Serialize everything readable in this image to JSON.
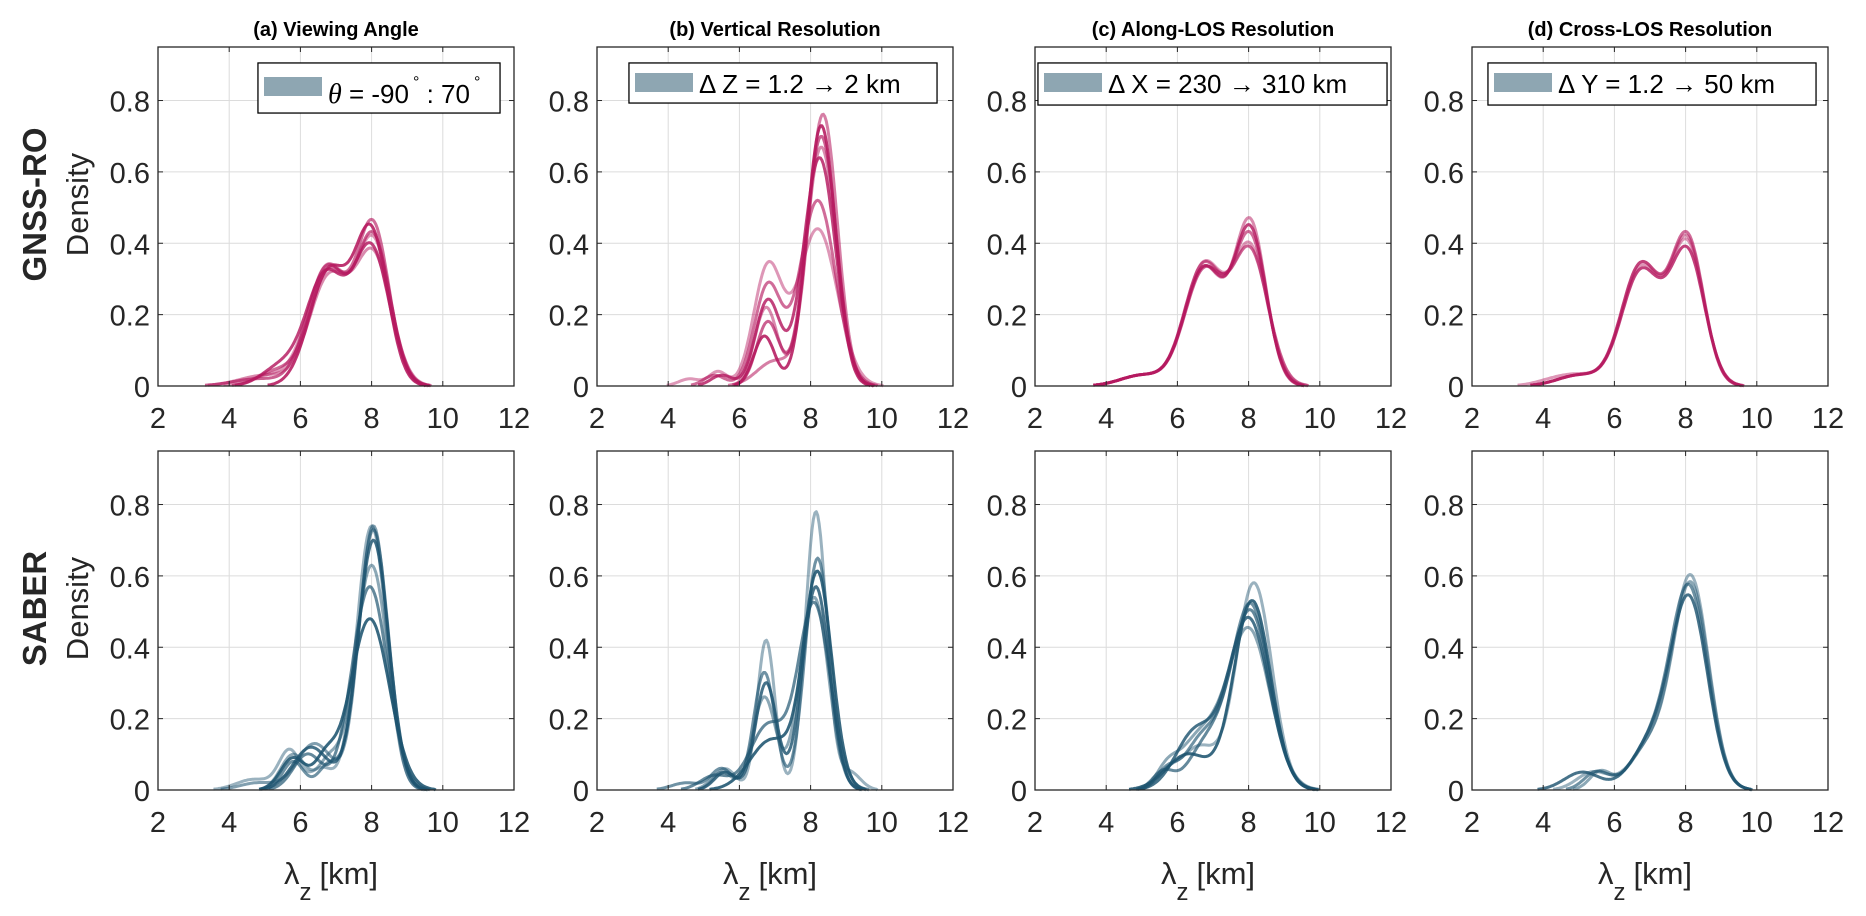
{
  "figure": {
    "column_titles": [
      "(a) Viewing Angle",
      "(b) Vertical Resolution",
      "(c) Along-LOS Resolution",
      "(d) Cross-LOS Resolution"
    ],
    "row_labels": [
      "GNSS-RO",
      "SABER"
    ],
    "ylabel": "Density",
    "xlabel_main": "λ",
    "xlabel_sub": "z",
    "xlabel_unit": "[km]",
    "legends": [
      {
        "prefix": "θ",
        "text": " = -90",
        "sup1": "°",
        "mid": " : 70",
        "sup2": "°"
      },
      {
        "text": "Δ Z = 1.2 → 2 km"
      },
      {
        "text": "Δ X = 230 → 310 km"
      },
      {
        "text": "Δ Y = 1.2 → 50 km"
      }
    ],
    "colors": {
      "gnss_line": "#B5195F",
      "gnss_legend": "#D98AB3",
      "saber_line": "#1E5470",
      "saber_legend": "#8EA6B2",
      "grid": "#DCDCDC",
      "axis": "#262626"
    }
  },
  "chart_data": [
    {
      "type": "line",
      "panel": "a",
      "row": "GNSS-RO",
      "title": "(a) Viewing Angle",
      "xlabel": "λz [km]",
      "ylabel": "Density",
      "xlim": [
        2,
        12
      ],
      "ylim": [
        0,
        0.95
      ],
      "xticks": [
        2,
        4,
        6,
        8,
        10,
        12
      ],
      "yticks": [
        0,
        0.2,
        0.4,
        0.6,
        0.8
      ],
      "grid": true,
      "legend": "θ = -90° : 70°",
      "legend_position": "top-right",
      "series_model": "sum of gaussian components [center_km, amplitude, sigma_km]",
      "series": [
        {
          "components": [
            [
              6.75,
              0.33,
              0.55
            ],
            [
              8.05,
              0.4,
              0.48
            ],
            [
              5.2,
              0.03,
              0.6
            ]
          ]
        },
        {
          "components": [
            [
              6.8,
              0.32,
              0.55
            ],
            [
              8.05,
              0.44,
              0.45
            ],
            [
              5.3,
              0.04,
              0.5
            ]
          ]
        },
        {
          "components": [
            [
              6.7,
              0.31,
              0.55
            ],
            [
              8.0,
              0.38,
              0.5
            ],
            [
              5.4,
              0.05,
              0.5
            ]
          ]
        },
        {
          "components": [
            [
              6.8,
              0.3,
              0.55
            ],
            [
              8.05,
              0.36,
              0.5
            ],
            [
              5.0,
              0.03,
              0.7
            ]
          ]
        },
        {
          "components": [
            [
              6.75,
              0.33,
              0.55
            ],
            [
              8.05,
              0.41,
              0.47
            ],
            [
              4.8,
              0.02,
              0.7
            ]
          ]
        },
        {
          "components": [
            [
              6.8,
              0.32,
              0.55
            ],
            [
              8.0,
              0.42,
              0.46
            ]
          ]
        }
      ]
    },
    {
      "type": "line",
      "panel": "b",
      "row": "GNSS-RO",
      "title": "(b) Vertical Resolution",
      "xlabel": "λz [km]",
      "ylabel": "Density",
      "xlim": [
        2,
        12
      ],
      "ylim": [
        0,
        0.95
      ],
      "xticks": [
        2,
        4,
        6,
        8,
        10,
        12
      ],
      "yticks": [
        0,
        0.2,
        0.4,
        0.6,
        0.8
      ],
      "grid": true,
      "legend": "Δ Z = 1.2 → 2 km",
      "legend_position": "top-right",
      "series_model": "sum of gaussian components [center_km, amplitude, sigma_km]",
      "series": [
        {
          "components": [
            [
              8.2,
              0.44,
              0.55
            ],
            [
              6.8,
              0.33,
              0.4
            ],
            [
              5.4,
              0.04,
              0.25
            ],
            [
              4.6,
              0.02,
              0.3
            ]
          ]
        },
        {
          "components": [
            [
              8.2,
              0.52,
              0.5
            ],
            [
              6.8,
              0.28,
              0.38
            ],
            [
              5.3,
              0.03,
              0.3
            ]
          ]
        },
        {
          "components": [
            [
              8.25,
              0.64,
              0.45
            ],
            [
              6.8,
              0.24,
              0.35
            ],
            [
              5.5,
              0.03,
              0.3
            ]
          ]
        },
        {
          "components": [
            [
              8.3,
              0.67,
              0.42
            ],
            [
              6.75,
              0.22,
              0.32
            ]
          ]
        },
        {
          "components": [
            [
              8.3,
              0.7,
              0.42
            ],
            [
              6.8,
              0.18,
              0.32
            ]
          ]
        },
        {
          "components": [
            [
              8.3,
              0.73,
              0.4
            ],
            [
              6.7,
              0.14,
              0.3
            ]
          ]
        },
        {
          "components": [
            [
              8.35,
              0.76,
              0.4
            ],
            [
              7.0,
              0.07,
              0.5
            ]
          ]
        }
      ]
    },
    {
      "type": "line",
      "panel": "c",
      "row": "GNSS-RO",
      "title": "(c) Along-LOS Resolution",
      "xlabel": "λz [km]",
      "ylabel": "Density",
      "xlim": [
        2,
        12
      ],
      "ylim": [
        0,
        0.95
      ],
      "xticks": [
        2,
        4,
        6,
        8,
        10,
        12
      ],
      "yticks": [
        0,
        0.2,
        0.4,
        0.6,
        0.8
      ],
      "grid": true,
      "legend": "Δ X = 230 → 310 km",
      "legend_position": "top-left",
      "series_model": "sum of gaussian components [center_km, amplitude, sigma_km]",
      "series": [
        {
          "components": [
            [
              6.75,
              0.34,
              0.55
            ],
            [
              8.05,
              0.38,
              0.48
            ],
            [
              5.0,
              0.03,
              0.6
            ]
          ]
        },
        {
          "components": [
            [
              6.75,
              0.34,
              0.55
            ],
            [
              8.05,
              0.41,
              0.46
            ],
            [
              5.0,
              0.03,
              0.6
            ]
          ]
        },
        {
          "components": [
            [
              6.75,
              0.33,
              0.55
            ],
            [
              8.05,
              0.43,
              0.45
            ],
            [
              5.0,
              0.03,
              0.6
            ]
          ]
        },
        {
          "components": [
            [
              6.75,
              0.33,
              0.55
            ],
            [
              8.05,
              0.45,
              0.44
            ],
            [
              5.0,
              0.03,
              0.6
            ]
          ]
        },
        {
          "components": [
            [
              6.75,
              0.32,
              0.55
            ],
            [
              8.05,
              0.37,
              0.5
            ],
            [
              5.0,
              0.03,
              0.6
            ]
          ]
        }
      ]
    },
    {
      "type": "line",
      "panel": "d",
      "row": "GNSS-RO",
      "title": "(d) Cross-LOS Resolution",
      "xlabel": "λz [km]",
      "ylabel": "Density",
      "xlim": [
        2,
        12
      ],
      "ylim": [
        0,
        0.95
      ],
      "xticks": [
        2,
        4,
        6,
        8,
        10,
        12
      ],
      "yticks": [
        0,
        0.2,
        0.4,
        0.6,
        0.8
      ],
      "grid": true,
      "legend": "Δ Y = 1.2 → 50 km",
      "legend_position": "top-right",
      "series_model": "sum of gaussian components [center_km, amplitude, sigma_km]",
      "series": [
        {
          "components": [
            [
              6.75,
              0.33,
              0.55
            ],
            [
              8.05,
              0.39,
              0.47
            ],
            [
              4.2,
              0.01,
              0.5
            ],
            [
              5.0,
              0.03,
              0.6
            ]
          ]
        },
        {
          "components": [
            [
              6.75,
              0.34,
              0.55
            ],
            [
              8.05,
              0.41,
              0.46
            ],
            [
              5.0,
              0.03,
              0.6
            ]
          ]
        },
        {
          "components": [
            [
              6.75,
              0.32,
              0.55
            ],
            [
              8.05,
              0.37,
              0.48
            ],
            [
              5.0,
              0.03,
              0.6
            ]
          ]
        },
        {
          "components": [
            [
              6.75,
              0.34,
              0.55
            ],
            [
              8.05,
              0.4,
              0.46
            ],
            [
              5.0,
              0.03,
              0.6
            ]
          ]
        }
      ]
    },
    {
      "type": "line",
      "panel": "a",
      "row": "SABER",
      "title": "(a) Viewing Angle",
      "xlabel": "λz [km]",
      "ylabel": "Density",
      "xlim": [
        2,
        12
      ],
      "ylim": [
        0,
        0.95
      ],
      "xticks": [
        2,
        4,
        6,
        8,
        10,
        12
      ],
      "yticks": [
        0,
        0.2,
        0.4,
        0.6,
        0.8
      ],
      "grid": true,
      "legend": "θ = -90° : 70°",
      "legend_position": "top-right",
      "series_model": "sum of gaussian components [center_km, amplitude, sigma_km]",
      "series": [
        {
          "components": [
            [
              8.0,
              0.74,
              0.42
            ],
            [
              5.7,
              0.11,
              0.3
            ],
            [
              4.7,
              0.03,
              0.5
            ],
            [
              6.6,
              0.06,
              0.3
            ]
          ]
        },
        {
          "components": [
            [
              8.05,
              0.73,
              0.42
            ],
            [
              5.8,
              0.08,
              0.3
            ],
            [
              6.8,
              0.07,
              0.3
            ]
          ]
        },
        {
          "components": [
            [
              8.05,
              0.7,
              0.43
            ],
            [
              6.3,
              0.12,
              0.5
            ]
          ]
        },
        {
          "components": [
            [
              8.0,
              0.63,
              0.46
            ],
            [
              5.8,
              0.1,
              0.35
            ],
            [
              6.8,
              0.08,
              0.3
            ]
          ]
        },
        {
          "components": [
            [
              7.95,
              0.57,
              0.5
            ],
            [
              6.2,
              0.1,
              0.4
            ]
          ]
        },
        {
          "components": [
            [
              7.95,
              0.48,
              0.55
            ],
            [
              5.8,
              0.09,
              0.35
            ],
            [
              6.7,
              0.08,
              0.3
            ]
          ]
        },
        {
          "components": [
            [
              8.05,
              0.74,
              0.4
            ],
            [
              6.4,
              0.13,
              0.5
            ],
            [
              4.8,
              0.02,
              0.5
            ]
          ]
        }
      ]
    },
    {
      "type": "line",
      "panel": "b",
      "row": "SABER",
      "title": "(b) Vertical Resolution",
      "xlabel": "λz [km]",
      "ylabel": "Density",
      "xlim": [
        2,
        12
      ],
      "ylim": [
        0,
        0.95
      ],
      "xticks": [
        2,
        4,
        6,
        8,
        10,
        12
      ],
      "yticks": [
        0,
        0.2,
        0.4,
        0.6,
        0.8
      ],
      "grid": true,
      "legend": "Δ Z = 1.2 → 2 km",
      "legend_position": "top-right",
      "series_model": "sum of gaussian components [center_km, amplitude, sigma_km]",
      "series": [
        {
          "components": [
            [
              8.15,
              0.78,
              0.3
            ],
            [
              6.75,
              0.42,
              0.25
            ],
            [
              5.6,
              0.06,
              0.3
            ],
            [
              9.1,
              0.05,
              0.3
            ]
          ]
        },
        {
          "components": [
            [
              8.2,
              0.65,
              0.35
            ],
            [
              6.7,
              0.33,
              0.3
            ],
            [
              5.5,
              0.06,
              0.3
            ],
            [
              4.5,
              0.02,
              0.4
            ]
          ]
        },
        {
          "components": [
            [
              8.15,
              0.57,
              0.38
            ],
            [
              6.75,
              0.3,
              0.3
            ],
            [
              5.6,
              0.05,
              0.3
            ]
          ]
        },
        {
          "components": [
            [
              8.1,
              0.54,
              0.4
            ],
            [
              6.7,
              0.26,
              0.32
            ],
            [
              5.5,
              0.05,
              0.3
            ]
          ]
        },
        {
          "components": [
            [
              8.1,
              0.52,
              0.45
            ],
            [
              6.8,
              0.18,
              0.5
            ],
            [
              5.3,
              0.04,
              0.4
            ]
          ]
        },
        {
          "components": [
            [
              8.2,
              0.6,
              0.4
            ],
            [
              6.9,
              0.14,
              0.6
            ]
          ]
        }
      ]
    },
    {
      "type": "line",
      "panel": "c",
      "row": "SABER",
      "title": "(c) Along-LOS Resolution",
      "xlabel": "λz [km]",
      "ylabel": "Density",
      "xlim": [
        2,
        12
      ],
      "ylim": [
        0,
        0.95
      ],
      "xticks": [
        2,
        4,
        6,
        8,
        10,
        12
      ],
      "yticks": [
        0,
        0.2,
        0.4,
        0.6,
        0.8
      ],
      "grid": true,
      "legend": "Δ X = 230 → 310 km",
      "legend_position": "top-left",
      "series_model": "sum of gaussian components [center_km, amplitude, sigma_km]",
      "series": [
        {
          "components": [
            [
              8.15,
              0.58,
              0.5
            ],
            [
              6.6,
              0.12,
              0.5
            ],
            [
              5.7,
              0.04,
              0.3
            ]
          ]
        },
        {
          "components": [
            [
              8.05,
              0.52,
              0.55
            ],
            [
              6.7,
              0.14,
              0.5
            ],
            [
              5.7,
              0.05,
              0.3
            ]
          ]
        },
        {
          "components": [
            [
              8.0,
              0.48,
              0.58
            ],
            [
              6.5,
              0.16,
              0.55
            ]
          ]
        },
        {
          "components": [
            [
              8.0,
              0.45,
              0.6
            ],
            [
              6.6,
              0.14,
              0.55
            ],
            [
              5.7,
              0.05,
              0.3
            ]
          ]
        },
        {
          "components": [
            [
              8.05,
              0.5,
              0.55
            ],
            [
              6.8,
              0.12,
              0.5
            ],
            [
              5.6,
              0.05,
              0.3
            ]
          ]
        },
        {
          "components": [
            [
              8.1,
              0.53,
              0.52
            ],
            [
              6.3,
              0.1,
              0.6
            ]
          ]
        }
      ]
    },
    {
      "type": "line",
      "panel": "d",
      "row": "SABER",
      "title": "(d) Cross-LOS Resolution",
      "xlabel": "λz [km]",
      "ylabel": "Density",
      "xlim": [
        2,
        12
      ],
      "ylim": [
        0,
        0.95
      ],
      "xticks": [
        2,
        4,
        6,
        8,
        10,
        12
      ],
      "yticks": [
        0,
        0.2,
        0.4,
        0.6,
        0.8
      ],
      "grid": true,
      "legend": "Δ Y = 1.2 → 50 km",
      "legend_position": "top-right",
      "series_model": "sum of gaussian components [center_km, amplitude, sigma_km]",
      "series": [
        {
          "components": [
            [
              8.15,
              0.59,
              0.5
            ],
            [
              7.0,
              0.12,
              0.55
            ],
            [
              5.4,
              0.05,
              0.45
            ]
          ]
        },
        {
          "components": [
            [
              8.1,
              0.56,
              0.52
            ],
            [
              7.0,
              0.12,
              0.55
            ],
            [
              5.5,
              0.05,
              0.35
            ]
          ]
        },
        {
          "components": [
            [
              8.1,
              0.53,
              0.52
            ],
            [
              7.0,
              0.12,
              0.55
            ],
            [
              5.1,
              0.05,
              0.5
            ]
          ]
        },
        {
          "components": [
            [
              8.15,
              0.57,
              0.5
            ],
            [
              7.0,
              0.12,
              0.55
            ],
            [
              5.6,
              0.05,
              0.3
            ]
          ]
        }
      ]
    }
  ]
}
